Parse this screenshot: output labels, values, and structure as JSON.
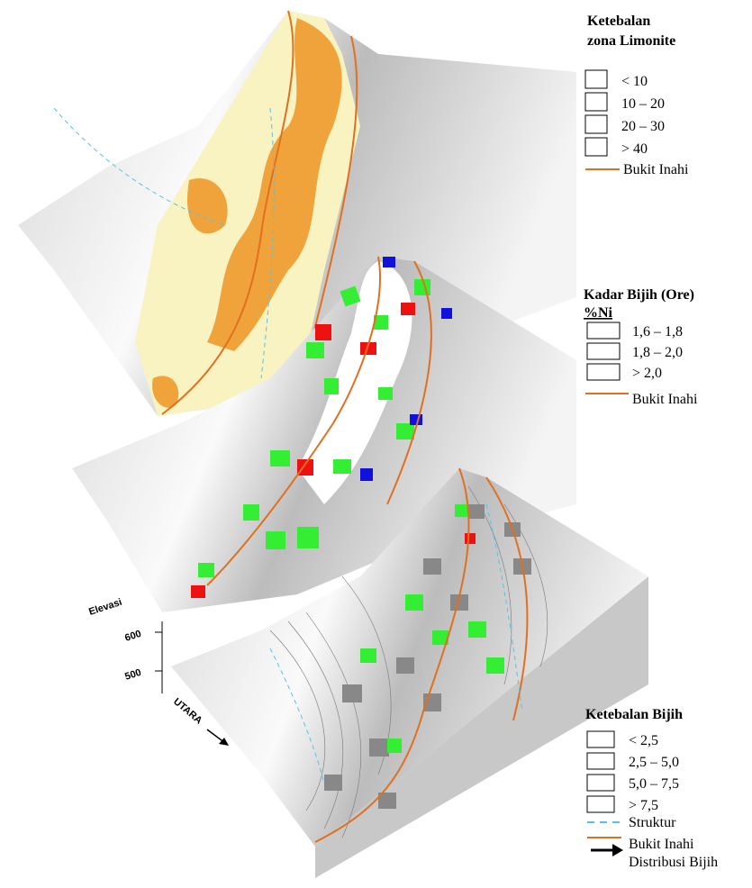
{
  "legend_limonite": {
    "title": [
      "Ketebalan",
      "zona Limonite"
    ],
    "items": [
      "< 10",
      "10 – 20",
      "20 – 30",
      "> 40"
    ],
    "boundary": "Bukit Inahi"
  },
  "legend_ore": {
    "title": "Kadar Bijih (Ore)",
    "unit": "%Ni",
    "items": [
      "1,6 – 1,8",
      "1,8 – 2,0",
      "> 2,0"
    ],
    "boundary": "Bukit Inahi"
  },
  "legend_thickness": {
    "title": "Ketebalan Bijih",
    "items": [
      "< 2,5",
      "2,5 – 5,0",
      "5,0 – 7,5",
      "> 7,5"
    ],
    "structure": "Struktur",
    "boundary": "Bukit Inahi",
    "distribution": "Distribusi Bijih"
  },
  "axis": {
    "label": "Elevasi",
    "ticks": [
      "600",
      "500"
    ],
    "north": "UTARA"
  }
}
